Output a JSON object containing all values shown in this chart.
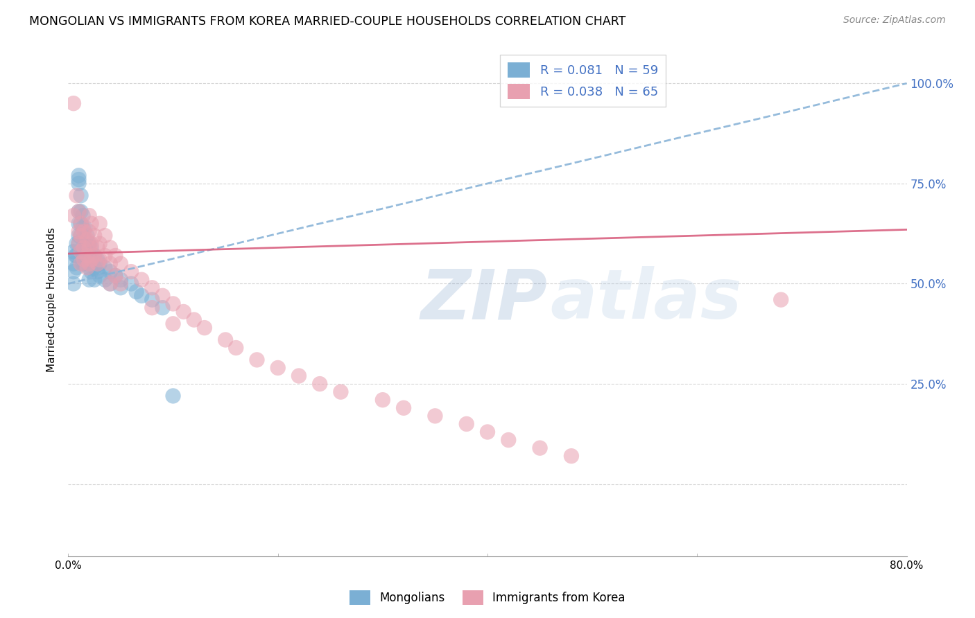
{
  "title": "MONGOLIAN VS IMMIGRANTS FROM KOREA MARRIED-COUPLE HOUSEHOLDS CORRELATION CHART",
  "source": "Source: ZipAtlas.com",
  "ylabel": "Married-couple Households",
  "y_ticks": [
    0.0,
    0.25,
    0.5,
    0.75,
    1.0
  ],
  "y_tick_labels": [
    "",
    "25.0%",
    "50.0%",
    "75.0%",
    "100.0%"
  ],
  "xlim": [
    0.0,
    0.8
  ],
  "ylim": [
    -0.18,
    1.1
  ],
  "legend_r1": "R = 0.081",
  "legend_n1": "N = 59",
  "legend_r2": "R = 0.038",
  "legend_n2": "N = 65",
  "blue_color": "#7bafd4",
  "pink_color": "#e8a0b0",
  "blue_line_color": "#8ab4d8",
  "pink_line_color": "#d96080",
  "watermark_zip_color": "#4a7ab5",
  "watermark_atlas_color": "#a8c4e0",
  "mongolians_x": [
    0.005,
    0.005,
    0.005,
    0.005,
    0.007,
    0.008,
    0.008,
    0.008,
    0.01,
    0.01,
    0.01,
    0.01,
    0.01,
    0.01,
    0.01,
    0.012,
    0.012,
    0.012,
    0.012,
    0.012,
    0.014,
    0.014,
    0.014,
    0.014,
    0.014,
    0.016,
    0.016,
    0.016,
    0.016,
    0.018,
    0.018,
    0.018,
    0.02,
    0.02,
    0.02,
    0.02,
    0.022,
    0.022,
    0.022,
    0.025,
    0.025,
    0.025,
    0.028,
    0.028,
    0.03,
    0.03,
    0.035,
    0.035,
    0.04,
    0.04,
    0.045,
    0.05,
    0.05,
    0.06,
    0.065,
    0.07,
    0.08,
    0.09,
    0.1
  ],
  "mongolians_y": [
    0.58,
    0.55,
    0.53,
    0.5,
    0.57,
    0.6,
    0.57,
    0.54,
    0.77,
    0.76,
    0.75,
    0.68,
    0.65,
    0.62,
    0.6,
    0.72,
    0.68,
    0.65,
    0.62,
    0.58,
    0.67,
    0.64,
    0.61,
    0.58,
    0.55,
    0.64,
    0.61,
    0.58,
    0.55,
    0.62,
    0.59,
    0.56,
    0.6,
    0.57,
    0.54,
    0.51,
    0.59,
    0.56,
    0.53,
    0.57,
    0.54,
    0.51,
    0.56,
    0.53,
    0.55,
    0.52,
    0.54,
    0.51,
    0.53,
    0.5,
    0.52,
    0.51,
    0.49,
    0.5,
    0.48,
    0.47,
    0.46,
    0.44,
    0.22
  ],
  "korea_x": [
    0.005,
    0.005,
    0.008,
    0.01,
    0.01,
    0.01,
    0.012,
    0.012,
    0.012,
    0.012,
    0.015,
    0.015,
    0.015,
    0.018,
    0.018,
    0.018,
    0.02,
    0.02,
    0.02,
    0.02,
    0.022,
    0.022,
    0.022,
    0.025,
    0.025,
    0.028,
    0.028,
    0.03,
    0.03,
    0.03,
    0.035,
    0.035,
    0.04,
    0.04,
    0.04,
    0.045,
    0.045,
    0.05,
    0.05,
    0.06,
    0.07,
    0.08,
    0.08,
    0.09,
    0.1,
    0.1,
    0.11,
    0.12,
    0.13,
    0.15,
    0.16,
    0.18,
    0.2,
    0.22,
    0.24,
    0.26,
    0.3,
    0.32,
    0.35,
    0.38,
    0.4,
    0.42,
    0.45,
    0.48,
    0.68
  ],
  "korea_y": [
    0.95,
    0.67,
    0.72,
    0.68,
    0.63,
    0.6,
    0.65,
    0.62,
    0.58,
    0.55,
    0.63,
    0.59,
    0.56,
    0.61,
    0.57,
    0.54,
    0.67,
    0.63,
    0.59,
    0.55,
    0.65,
    0.6,
    0.56,
    0.62,
    0.57,
    0.59,
    0.55,
    0.65,
    0.6,
    0.56,
    0.62,
    0.57,
    0.59,
    0.55,
    0.5,
    0.57,
    0.52,
    0.55,
    0.5,
    0.53,
    0.51,
    0.49,
    0.44,
    0.47,
    0.45,
    0.4,
    0.43,
    0.41,
    0.39,
    0.36,
    0.34,
    0.31,
    0.29,
    0.27,
    0.25,
    0.23,
    0.21,
    0.19,
    0.17,
    0.15,
    0.13,
    0.11,
    0.09,
    0.07,
    0.46
  ],
  "blue_trend_x": [
    0.0,
    0.8
  ],
  "blue_trend_y": [
    0.5,
    1.0
  ],
  "pink_trend_x": [
    0.0,
    0.8
  ],
  "pink_trend_y": [
    0.575,
    0.635
  ]
}
